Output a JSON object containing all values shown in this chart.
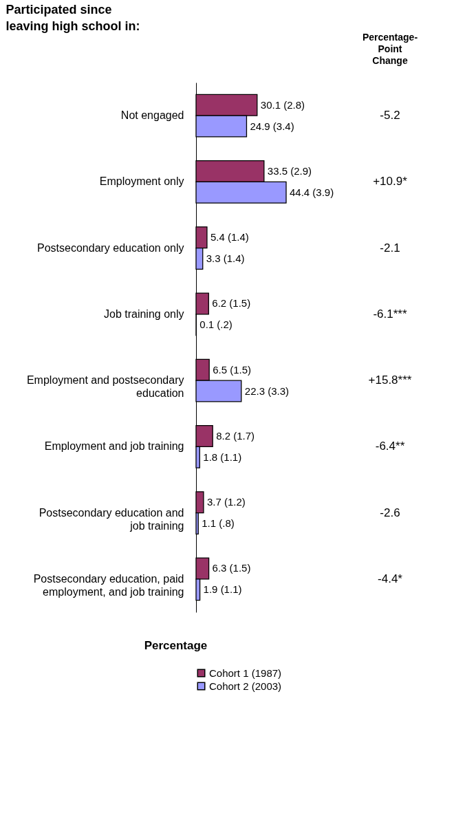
{
  "chart_data": {
    "type": "bar",
    "orientation": "horizontal",
    "title": "Participated since leaving high school in:",
    "xlabel": "Percentage",
    "categories": [
      "Not engaged",
      "Employment only",
      "Postsecondary education only",
      "Job training only",
      "Employment and postsecondary education",
      "Employment and job training",
      "Postsecondary education and job training",
      "Postsecondary education, paid employment, and job training"
    ],
    "series": [
      {
        "name": "Cohort 1 (1987)",
        "color": "#993366",
        "values": [
          30.1,
          33.5,
          5.4,
          6.2,
          6.5,
          8.2,
          3.7,
          6.3
        ],
        "value_labels": [
          "30.1 (2.8)",
          "33.5 (2.9)",
          "5.4 (1.4)",
          "6.2 (1.5)",
          "6.5 (1.5)",
          "8.2 (1.7)",
          "3.7 (1.2)",
          "6.3 (1.5)"
        ]
      },
      {
        "name": "Cohort 2 (2003)",
        "color": "#9999ff",
        "values": [
          24.9,
          44.4,
          3.3,
          0.1,
          22.3,
          1.8,
          1.1,
          1.9
        ],
        "value_labels": [
          "24.9 (3.4)",
          "44.4 (3.9)",
          "3.3 (1.4)",
          "0.1 (.2)",
          "22.3 (3.3)",
          "1.8 (1.1)",
          "1.1 (.8)",
          "1.9 (1.1)"
        ]
      }
    ],
    "annotations": [
      "Percentage-Point Change",
      "-5.2",
      "+10.9*",
      "-2.1",
      "-6.1***",
      "+15.8***",
      "-6.4**",
      "-2.6",
      "-4.4*"
    ],
    "legend": "bottom right"
  }
}
